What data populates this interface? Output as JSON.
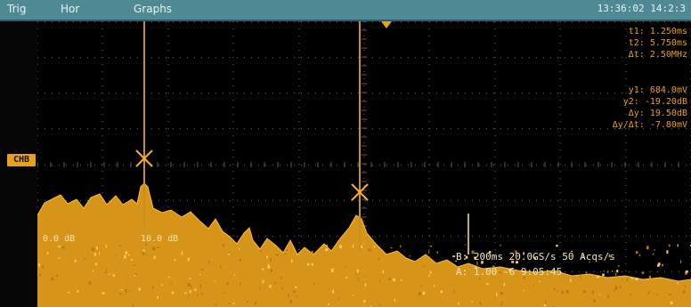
{
  "menu": {
    "items": [
      "Trig",
      "Hor",
      "Graphs"
    ]
  },
  "clock": "13:36:02 14:2:3",
  "ref_marker_label": "CHB",
  "cursor_readouts": {
    "block1": [
      "t1: 1.250ms",
      "t2: 5.750ms",
      "Δt: 2.50MHz"
    ],
    "block2": [
      "y1: 684.0mV",
      "y2: -19.20dB",
      "Δy: 19.50dB",
      "Δy/Δt: -7.80mV"
    ]
  },
  "channel_tags": [
    "0.0 dB",
    "10.0 dB"
  ],
  "status": {
    "line1": "B: 200ms  20.0GS/s  50 Acqs/s",
    "line2": "A: 1.00  -6  9:05:45"
  },
  "colors": {
    "trace": "#e8a21a",
    "grid": "#5a5a5a",
    "menubar": "#4f8a94",
    "cursor": "#c8901c"
  }
}
